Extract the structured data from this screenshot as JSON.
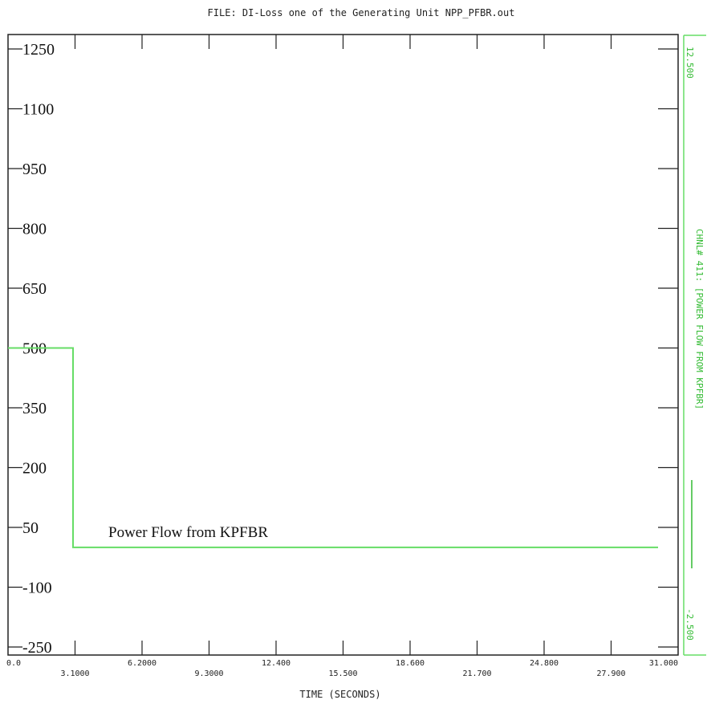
{
  "chart_data": {
    "type": "line",
    "title": "FILE: DI-Loss one of the Generating Unit NPP_PFBR.out",
    "xlabel": "TIME (SECONDS)",
    "ylabel": "",
    "xlim": [
      0.0,
      31.0
    ],
    "ylim": [
      -250,
      1250
    ],
    "x_ticks": [
      "0.0",
      "3.1000",
      "6.2000",
      "9.3000",
      "12.400",
      "15.500",
      "18.600",
      "21.700",
      "24.800",
      "27.900",
      "31.000"
    ],
    "y_ticks": [
      "1250",
      "1100",
      "950",
      "800",
      "650",
      "500",
      "350",
      "200",
      "50",
      "-100",
      "-250"
    ],
    "right_axis": {
      "top_label": "12.500",
      "bottom_label": "-2.500",
      "label": "CHNL# 411: [POWER FLOW FROM KPFBR]"
    },
    "series": [
      {
        "name": "Power Flow from KPFBR",
        "color": "#66dd66",
        "x": [
          0.0,
          3.1,
          3.1,
          31.0
        ],
        "y": [
          500,
          500,
          0,
          0
        ]
      }
    ],
    "grid": false
  }
}
